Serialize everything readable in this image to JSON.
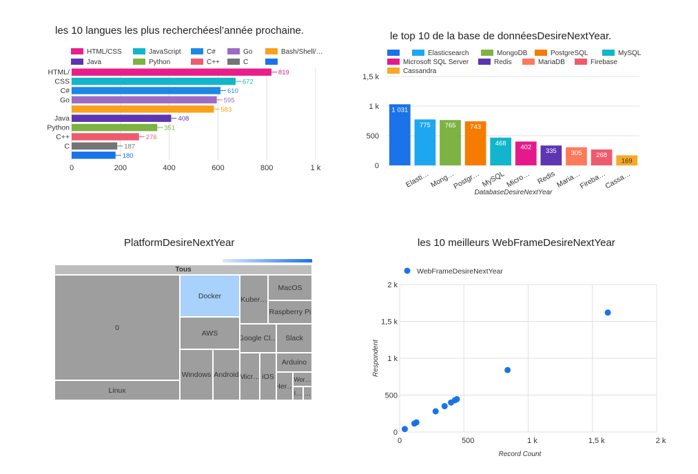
{
  "chart_data": [
    {
      "id": "languages",
      "type": "bar",
      "orientation": "horizontal",
      "title": "les 10 langues les plus recherchéesl’année prochaine.",
      "categories": [
        "HTML/CSS",
        "JavaScript",
        "C#",
        "Go",
        "Bash/Shell/PowerShell",
        "Java",
        "Python",
        "C++",
        "C",
        ""
      ],
      "values": [
        819,
        672,
        610,
        595,
        583,
        408,
        351,
        276,
        187,
        180
      ],
      "value_labels": [
        "819",
        "672",
        "610",
        "595",
        "583",
        "408",
        "351",
        "276",
        "187",
        "180"
      ],
      "colors": [
        "#e91e8c",
        "#12b5cb",
        "#1e88e5",
        "#9c6bc4",
        "#f9a11b",
        "#5e35b1",
        "#7cb342",
        "#ef5b6e",
        "#757575",
        "#1a73e8"
      ],
      "y_tick_labels": [
        "HTML/\nCSS",
        "",
        "C#",
        "Go",
        "",
        "Java",
        "Python",
        "C++",
        "C",
        ""
      ],
      "legend": [
        {
          "label": "HTML/CSS",
          "color": "#e91e8c"
        },
        {
          "label": "JavaScript",
          "color": "#12b5cb"
        },
        {
          "label": "C#",
          "color": "#1e88e5"
        },
        {
          "label": "Go",
          "color": "#9c6bc4"
        },
        {
          "label": "Bash/Shell/…",
          "color": "#f9a11b"
        },
        {
          "label": "Java",
          "color": "#5e35b1"
        },
        {
          "label": "Python",
          "color": "#7cb342"
        },
        {
          "label": "C++",
          "color": "#ef5b6e"
        },
        {
          "label": "C",
          "color": "#757575"
        },
        {
          "label": "",
          "color": "#1a73e8"
        }
      ],
      "xlim": [
        0,
        1000
      ],
      "x_ticks": [
        0,
        200,
        400,
        600,
        800,
        1000
      ],
      "x_tick_labels": [
        "0",
        "200",
        "400",
        "600",
        "800",
        "1 k"
      ],
      "legend_position": "top",
      "grid": true
    },
    {
      "id": "databases",
      "type": "bar",
      "orientation": "vertical",
      "title": "le top 10 de la base de donnéesDesireNextYear.",
      "xlabel": "DatabaseDesireNextYear",
      "categories": [
        "",
        "Elasticsearch",
        "MongoDB",
        "PostgreSQL",
        "MySQL",
        "Microsoft SQL Server",
        "Redis",
        "MariaDB",
        "Firebase",
        "Cassandra"
      ],
      "x_tick_labels": [
        "",
        "Elasti…",
        "Mong…",
        "Postgr…",
        "MySQL",
        "Micro…",
        "Redis",
        "Maria…",
        "Fireba…",
        "Cassa…"
      ],
      "values": [
        1031,
        775,
        765,
        743,
        468,
        402,
        335,
        305,
        268,
        169
      ],
      "value_labels": [
        "1 031",
        "775",
        "765",
        "743",
        "468",
        "402",
        "335",
        "305",
        "268",
        "169"
      ],
      "colors": [
        "#1a73e8",
        "#1ea7f0",
        "#7cb342",
        "#f57c00",
        "#12b5cb",
        "#e6198c",
        "#5e35b1",
        "#ff7a59",
        "#ef5b6e",
        "#f9a825"
      ],
      "legend": [
        {
          "label": "",
          "color": "#1a73e8"
        },
        {
          "label": "Elasticsearch",
          "color": "#1ea7f0"
        },
        {
          "label": "MongoDB",
          "color": "#7cb342"
        },
        {
          "label": "PostgreSQL",
          "color": "#f57c00"
        },
        {
          "label": "MySQL",
          "color": "#12b5cb"
        },
        {
          "label": "Microsoft SQL Server",
          "color": "#e6198c"
        },
        {
          "label": "Redis",
          "color": "#5e35b1"
        },
        {
          "label": "MariaDB",
          "color": "#ff7a59"
        },
        {
          "label": "Firebase",
          "color": "#ef5b6e"
        },
        {
          "label": "Cassandra",
          "color": "#f9a825"
        }
      ],
      "ylim": [
        0,
        1500
      ],
      "y_ticks": [
        0,
        500,
        1000,
        1500
      ],
      "y_tick_labels": [
        "0",
        "500",
        "1 k",
        "1,5 k"
      ],
      "legend_position": "top",
      "grid": true
    },
    {
      "id": "platforms",
      "type": "treemap",
      "title": "PlatformDesireNextYear",
      "header": "Tous",
      "color_scale": [
        "#dbe9fb",
        "#1a73e8"
      ],
      "cells": [
        {
          "label": "0",
          "color": "#9e9e9e"
        },
        {
          "label": "Linux",
          "color": "#9e9e9e"
        },
        {
          "label": "Docker",
          "color": "#a8d1fb"
        },
        {
          "label": "AWS",
          "color": "#9e9e9e"
        },
        {
          "label": "Windows",
          "color": "#9e9e9e"
        },
        {
          "label": "Android",
          "color": "#9e9e9e"
        },
        {
          "label": "Kuber…",
          "color": "#9e9e9e"
        },
        {
          "label": "MacOS",
          "color": "#9e9e9e"
        },
        {
          "label": "Raspberry Pi",
          "color": "#9e9e9e"
        },
        {
          "label": "Google Cl…",
          "color": "#9e9e9e"
        },
        {
          "label": "Slack",
          "color": "#9e9e9e"
        },
        {
          "label": "Arduino",
          "color": "#9e9e9e"
        },
        {
          "label": "Micr…",
          "color": "#9e9e9e"
        },
        {
          "label": "iOS",
          "color": "#9e9e9e"
        },
        {
          "label": "Wor…",
          "color": "#9e9e9e"
        },
        {
          "label": "Her…",
          "color": "#9e9e9e"
        },
        {
          "label": "I…",
          "color": "#9e9e9e"
        },
        {
          "label": "…",
          "color": "#9e9e9e"
        }
      ]
    },
    {
      "id": "webframes",
      "type": "scatter",
      "title": "les 10 meilleurs WebFrameDesireNextYear",
      "xlabel": "Record Count",
      "ylabel": "Respondent",
      "series": [
        {
          "name": "WebFrameDesireNextYear",
          "color": "#1a73e8",
          "points": [
            [
              1620,
              1620
            ],
            [
              840,
              840
            ],
            [
              445,
              445
            ],
            [
              430,
              430
            ],
            [
              400,
              400
            ],
            [
              350,
              350
            ],
            [
              280,
              280
            ],
            [
              130,
              130
            ],
            [
              115,
              115
            ],
            [
              40,
              40
            ]
          ]
        }
      ],
      "xlim": [
        0,
        2000
      ],
      "ylim": [
        0,
        2000
      ],
      "x_ticks": [
        0,
        500,
        1000,
        1500,
        2000
      ],
      "x_tick_labels": [
        "0",
        "500",
        "1 k",
        "1,5 k",
        "2 k"
      ],
      "y_ticks": [
        0,
        500,
        1000,
        1500,
        2000
      ],
      "y_tick_labels": [
        "0",
        "500",
        "1 k",
        "1,5 k",
        "2 k"
      ],
      "legend_position": "top-left",
      "grid": true
    }
  ]
}
